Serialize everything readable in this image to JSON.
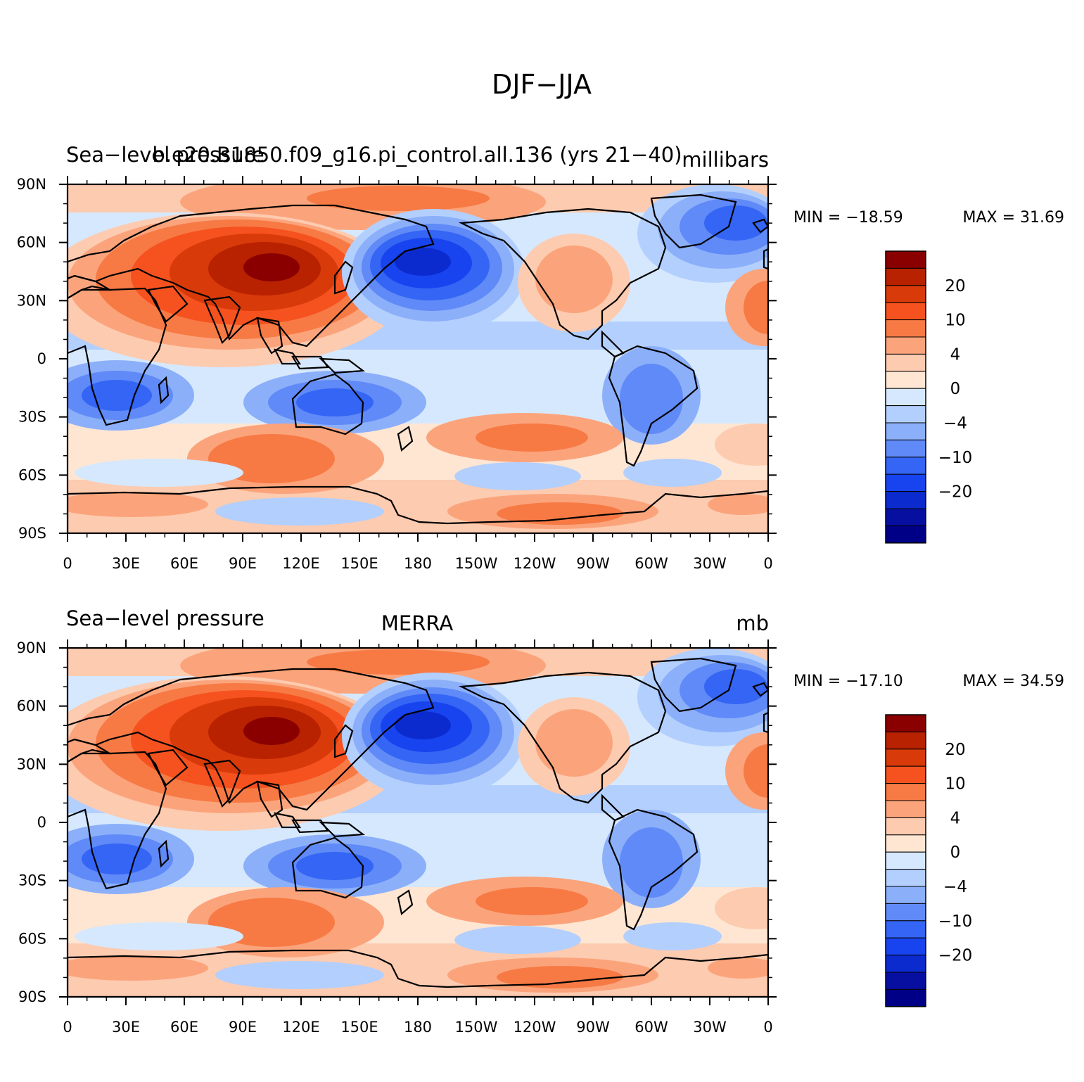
{
  "figure": {
    "title": "DJF−JJA"
  },
  "colorbar_levels": [
    "20",
    "10",
    "4",
    "0",
    "−4",
    "−10",
    "−20"
  ],
  "colors": {
    "ramp": [
      "#8a0000",
      "#b82200",
      "#d93a0a",
      "#f5521f",
      "#f77a45",
      "#fba47c",
      "#fdcbb0",
      "#fee6d3",
      "#d6e8fd",
      "#b3cffd",
      "#8caffa",
      "#5f8af7",
      "#3565f4",
      "#1844ef",
      "#0c2bcf",
      "#060fa0",
      "#000086"
    ],
    "land": "#000000"
  },
  "axes": {
    "lat_ticks": [
      "90N",
      "60N",
      "30N",
      "0",
      "30S",
      "60S",
      "90S"
    ],
    "lon_ticks": [
      "0",
      "30E",
      "60E",
      "90E",
      "120E",
      "150E",
      "180",
      "150W",
      "120W",
      "90W",
      "60W",
      "30W",
      "0"
    ]
  },
  "panels": [
    {
      "left_string": "Sea−level pressure",
      "center_string": "b.e20.B1850.f09_g16.pi_control.all.136 (yrs 21−40)",
      "right_string": "millibars",
      "min_label": "MIN = −18.59",
      "max_label": "MAX =   31.69",
      "min": -18.59,
      "max": 31.69
    },
    {
      "left_string": "Sea−level pressure",
      "center_string": "MERRA",
      "right_string": "mb",
      "min_label": "MIN = −17.10",
      "max_label": "MAX =   34.59",
      "min": -17.1,
      "max": 34.59
    }
  ]
}
